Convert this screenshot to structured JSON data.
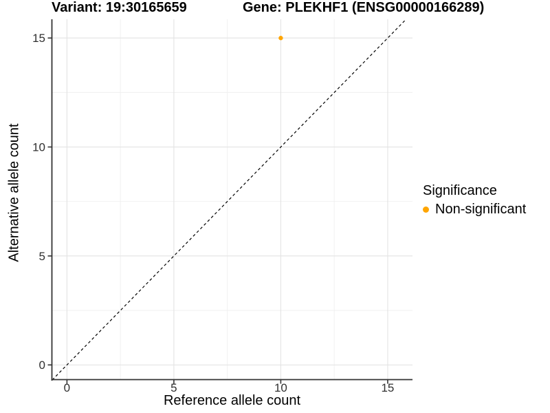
{
  "chart_data": {
    "type": "scatter",
    "title_left": "Variant: 19:30165659",
    "title_right": "Gene: PLEKHF1 (ENSG00000166289)",
    "xlabel": "Reference allele count",
    "ylabel": "Alternative allele count",
    "x_ticks": [
      0,
      5,
      10,
      15
    ],
    "y_ticks": [
      0,
      5,
      10,
      15
    ],
    "x_minor": [
      2.5,
      7.5,
      12.5
    ],
    "y_minor": [
      2.5,
      7.5,
      12.5
    ],
    "xlim": [
      -0.72,
      16.16
    ],
    "ylim": [
      -0.69,
      15.86
    ],
    "grid": true,
    "points": [
      {
        "x": 10,
        "y": 15,
        "significance": "Non-significant"
      }
    ],
    "identity_line": {
      "slope": 1,
      "intercept": 0,
      "style": "dashed"
    },
    "legend": {
      "title": "Significance",
      "position": "right",
      "items": [
        {
          "label": "Non-significant",
          "color": "#FFA500"
        }
      ]
    },
    "colors": {
      "point": "#FFA500",
      "grid_major": "#E3E3E3",
      "grid_minor": "#EFEFEF",
      "axis_line": "#333333",
      "identity_line": "#000000",
      "tick_label": "#303030"
    }
  }
}
